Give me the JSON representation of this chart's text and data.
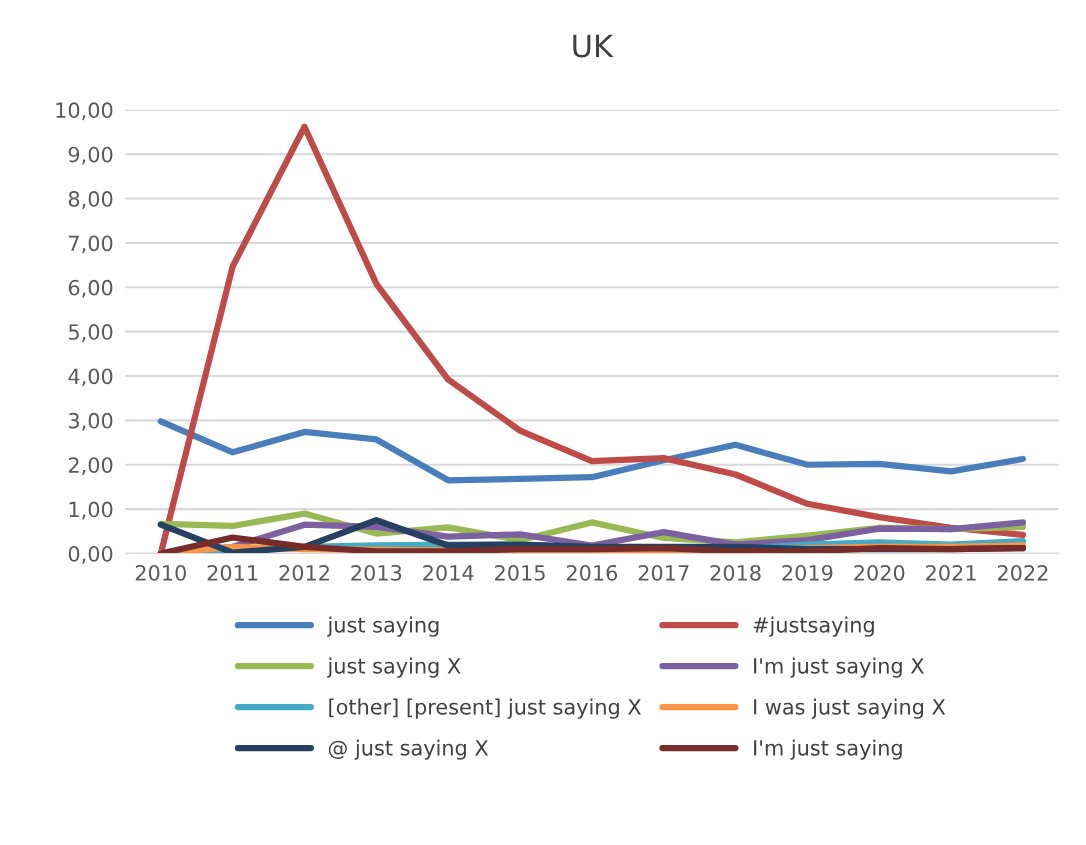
{
  "chart_data": {
    "type": "line",
    "title": "UK",
    "categories": [
      "2010",
      "2011",
      "2012",
      "2013",
      "2014",
      "2015",
      "2016",
      "2017",
      "2018",
      "2019",
      "2020",
      "2021",
      "2022"
    ],
    "ylim": [
      0,
      10
    ],
    "yticks": [
      {
        "value": 0,
        "label": "0,00"
      },
      {
        "value": 1,
        "label": "1,00"
      },
      {
        "value": 2,
        "label": "2,00"
      },
      {
        "value": 3,
        "label": "3,00"
      },
      {
        "value": 4,
        "label": "4,00"
      },
      {
        "value": 5,
        "label": "5,00"
      },
      {
        "value": 6,
        "label": "6,00"
      },
      {
        "value": 7,
        "label": "7,00"
      },
      {
        "value": 8,
        "label": "8,00"
      },
      {
        "value": 9,
        "label": "9,00"
      },
      {
        "value": 10,
        "label": "10,00"
      }
    ],
    "grid": "y",
    "legend": "bottom",
    "marker": "none",
    "line_style": "solid",
    "series": [
      {
        "name": "just saying",
        "color": "#4a7ebb",
        "values": [
          2.98,
          2.28,
          2.74,
          2.57,
          1.65,
          1.68,
          1.72,
          2.1,
          2.45,
          2.0,
          2.02,
          1.85,
          2.13
        ]
      },
      {
        "name": "#justsaying",
        "color": "#be4b48",
        "values": [
          0,
          6.47,
          9.62,
          6.08,
          3.92,
          2.77,
          2.08,
          2.15,
          1.78,
          1.12,
          0.82,
          0.58,
          0.42
        ]
      },
      {
        "name": "just saying X",
        "color": "#98b954",
        "values": [
          0.67,
          0.62,
          0.9,
          0.45,
          0.59,
          0.3,
          0.7,
          0.35,
          0.25,
          0.4,
          0.58,
          0.55,
          0.6
        ]
      },
      {
        "name": "I'm just saying X",
        "color": "#7d60a0",
        "values": [
          0,
          0.15,
          0.65,
          0.6,
          0.38,
          0.43,
          0.18,
          0.48,
          0.2,
          0.3,
          0.56,
          0.55,
          0.7
        ]
      },
      {
        "name": "[other] [present] just saying X",
        "color": "#46aac5",
        "values": [
          0,
          null,
          0.15,
          0.18,
          0.2,
          0.2,
          0.12,
          null,
          0.1,
          0.2,
          0.25,
          0.2,
          0.28
        ]
      },
      {
        "name": "I was just saying X",
        "color": "#f79646",
        "values": [
          0,
          0.15,
          0.1,
          null,
          null,
          0.05,
          0.05,
          0.05,
          null,
          0.12,
          0.15,
          0.15,
          0.18
        ]
      },
      {
        "name": "@ just saying X",
        "color": "#254061",
        "values": [
          0.65,
          0.02,
          0.15,
          0.75,
          0.18,
          0.2,
          0.15,
          0.15,
          0.15,
          0.1,
          0.1,
          0.1,
          0.12
        ]
      },
      {
        "name": "I'm just saying",
        "color": "#772c2a",
        "values": [
          0,
          0.36,
          0.15,
          0.05,
          0.05,
          0.1,
          0.1,
          0.12,
          0.05,
          0.05,
          0.12,
          0.1,
          0.12
        ]
      }
    ]
  }
}
